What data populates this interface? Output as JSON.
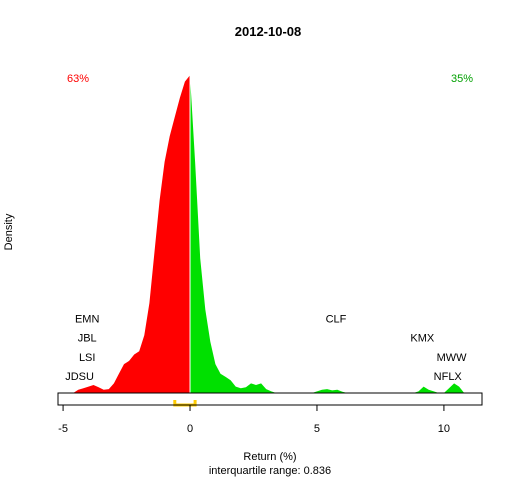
{
  "chart_data": {
    "type": "area",
    "title": "2012-10-08",
    "xlabel": "Return (%)",
    "ylabel": "Density",
    "subtitle": "interquartile range: 0.836",
    "xlim": [
      -5.2,
      11.5
    ],
    "ylim": [
      0,
      1.0
    ],
    "xticks": [
      -5,
      0,
      5,
      10
    ],
    "pct_negative": "63%",
    "pct_positive": "35%",
    "colors": {
      "negative": "#ff0000",
      "positive": "#00e000",
      "iqr": "#ffcc00",
      "neg_text": "#ff0000",
      "pos_text": "#00a000"
    },
    "iqr": [
      -0.6,
      0.2
    ],
    "density": {
      "x": [
        -4.6,
        -4.4,
        -4.2,
        -4.0,
        -3.8,
        -3.6,
        -3.4,
        -3.2,
        -3.0,
        -2.8,
        -2.6,
        -2.4,
        -2.2,
        -2.0,
        -1.8,
        -1.6,
        -1.4,
        -1.2,
        -1.0,
        -0.8,
        -0.6,
        -0.4,
        -0.2,
        0.0,
        0.2,
        0.4,
        0.6,
        0.8,
        1.0,
        1.2,
        1.4,
        1.6,
        1.8,
        2.0,
        2.2,
        2.4,
        2.6,
        2.8,
        3.0,
        3.2,
        3.4,
        3.6,
        3.8,
        4.0,
        4.2,
        4.4,
        4.6,
        4.8,
        5.0,
        5.2,
        5.4,
        5.6,
        5.8,
        6.0,
        6.2,
        6.4,
        6.6,
        6.8,
        7.0,
        7.2,
        7.4,
        7.6,
        7.8,
        8.0,
        8.2,
        8.4,
        8.6,
        8.8,
        9.0,
        9.2,
        9.4,
        9.6,
        9.8,
        10.0,
        10.2,
        10.4,
        10.6,
        10.8
      ],
      "y": [
        0,
        0.01,
        0.015,
        0.02,
        0.025,
        0.018,
        0.01,
        0.012,
        0.03,
        0.06,
        0.09,
        0.1,
        0.12,
        0.13,
        0.18,
        0.28,
        0.44,
        0.6,
        0.72,
        0.8,
        0.86,
        0.92,
        0.97,
        0.99,
        0.72,
        0.42,
        0.26,
        0.16,
        0.09,
        0.06,
        0.05,
        0.04,
        0.02,
        0.015,
        0.018,
        0.03,
        0.025,
        0.03,
        0.012,
        0.005,
        0,
        0,
        0,
        0,
        0,
        0,
        0,
        0,
        0.005,
        0.01,
        0.012,
        0.008,
        0.01,
        0.004,
        0,
        0,
        0,
        0,
        0,
        0,
        0,
        0,
        0,
        0,
        0,
        0,
        0,
        0,
        0.005,
        0.02,
        0.01,
        0.005,
        0,
        0,
        0.015,
        0.03,
        0.02,
        0
      ]
    },
    "annotations": [
      {
        "text": "EMN",
        "x": -4.05,
        "y": 0.22
      },
      {
        "text": "JBL",
        "x": -4.05,
        "y": 0.16
      },
      {
        "text": "LSI",
        "x": -4.05,
        "y": 0.1
      },
      {
        "text": "JDSU",
        "x": -4.35,
        "y": 0.04
      },
      {
        "text": "CLF",
        "x": 5.75,
        "y": 0.22
      },
      {
        "text": "KMX",
        "x": 9.15,
        "y": 0.16
      },
      {
        "text": "MWW",
        "x": 10.3,
        "y": 0.1
      },
      {
        "text": "NFLX",
        "x": 10.15,
        "y": 0.04
      }
    ]
  }
}
